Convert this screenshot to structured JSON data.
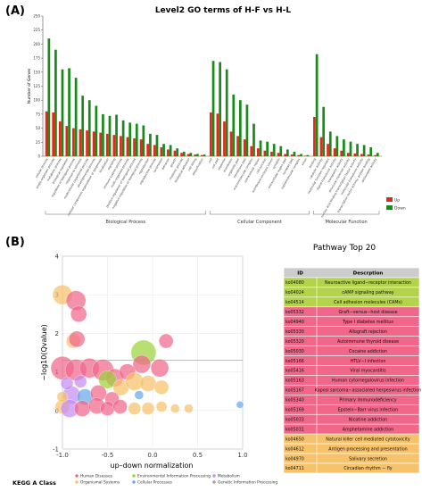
{
  "colors": {
    "up": "#e8261c",
    "down": "#1a8a1a",
    "table_header": "#cccccc",
    "group_green": "#b3d44a",
    "group_pink": "#f0678a",
    "group_orange": "#f6c26a"
  },
  "panels": {
    "a_label": "(A)",
    "b_label": "(B)"
  },
  "chart_data": [
    {
      "type": "bar",
      "title": "Level2 GO terms of H-F vs H-L",
      "ylabel": "Number of Genes",
      "xlabel": "",
      "ylim": [
        0,
        250
      ],
      "yticks": [
        0,
        25,
        50,
        75,
        100,
        125,
        150,
        175,
        200,
        225,
        250
      ],
      "legend": {
        "placement": "right",
        "entries": [
          {
            "key": "up",
            "label": "Up"
          },
          {
            "key": "down",
            "label": "Down"
          }
        ]
      },
      "groups": [
        {
          "name": "Biological Process",
          "categories": [
            "cellular process",
            "single-organism process",
            "metabolic process",
            "biological regulation",
            "regulation of biological process",
            "response to stimulus",
            "multicellular organismal process",
            "developmental process",
            "cellular component organization or biogenesis",
            "localization",
            "signaling",
            "immune system process",
            "multi-organism process",
            "positive regulation of biological process",
            "negative regulation of biological process",
            "reproduction",
            "reproductive process",
            "locomotion",
            "behavior",
            "growth",
            "rhythmic process",
            "biological adhesion",
            "cell killing",
            "detoxification"
          ],
          "up": [
            80,
            78,
            62,
            54,
            50,
            48,
            46,
            44,
            42,
            40,
            38,
            36,
            34,
            32,
            30,
            22,
            20,
            16,
            12,
            10,
            6,
            4,
            3,
            2
          ],
          "down": [
            210,
            190,
            155,
            157,
            140,
            108,
            100,
            90,
            75,
            72,
            74,
            64,
            60,
            58,
            55,
            40,
            38,
            22,
            20,
            14,
            8,
            6,
            4,
            3
          ]
        },
        {
          "name": "Cellular Component",
          "categories": [
            "cell",
            "cell part",
            "organelle",
            "membrane",
            "organelle part",
            "membrane part",
            "macromolecular complex",
            "extracellular region",
            "cell junction",
            "membrane-enclosed lumen",
            "synapse",
            "extracellular region part",
            "synapse part",
            "supramolecular complex",
            "virion"
          ],
          "up": [
            78,
            76,
            62,
            44,
            36,
            30,
            18,
            14,
            10,
            8,
            6,
            4,
            3,
            2,
            1
          ],
          "down": [
            170,
            168,
            155,
            110,
            100,
            92,
            58,
            28,
            26,
            22,
            18,
            12,
            8,
            4,
            2
          ]
        },
        {
          "name": "Molecular Function",
          "categories": [
            "binding",
            "catalytic activity",
            "molecular function regulator",
            "signal transducer activity",
            "transporter activity",
            "structural molecule activity",
            "nucleic acid binding transcription factor activity",
            "molecular transducer activity",
            "transcription factor activity, protein binding",
            "antioxidant activity"
          ],
          "up": [
            70,
            34,
            22,
            14,
            10,
            6,
            5,
            4,
            3,
            2
          ],
          "down": [
            182,
            88,
            44,
            36,
            30,
            26,
            22,
            20,
            16,
            6
          ]
        }
      ]
    },
    {
      "type": "scatter",
      "title": "",
      "xlabel": "up–down normalization",
      "ylabel": "−log10(Qvalue)",
      "xlim": [
        -1.0,
        1.0
      ],
      "ylim": [
        -1,
        4
      ],
      "xticks": [
        -1.0,
        -0.5,
        0.0,
        0.5,
        1.0
      ],
      "yticks": [
        -1,
        0,
        1,
        2,
        3,
        4
      ],
      "threshold_y": 1.3,
      "legend": {
        "title": "KEGG A Class",
        "placement": "bottom",
        "entries": [
          {
            "name": "Human Diseases",
            "color": "#f0678a"
          },
          {
            "name": "Organismal Systems",
            "color": "#f6c26a"
          },
          {
            "name": "Environmental Information Processing",
            "color": "#9cd23a"
          },
          {
            "name": "Cellular Processes",
            "color": "#6aa8e8"
          },
          {
            "name": "Metabolism",
            "color": "#c58cf2"
          },
          {
            "name": "Genetic Information Processing",
            "color": "#a0a0a0"
          }
        ]
      },
      "points": [
        {
          "x": -1.0,
          "y": 3.0,
          "r": 11,
          "cls": 1
        },
        {
          "x": -0.85,
          "y": 2.85,
          "r": 11,
          "cls": 0
        },
        {
          "x": -0.82,
          "y": 2.5,
          "r": 9,
          "cls": 0
        },
        {
          "x": -0.88,
          "y": 1.8,
          "r": 8,
          "cls": 1
        },
        {
          "x": -0.84,
          "y": 1.85,
          "r": 9,
          "cls": 0
        },
        {
          "x": -0.1,
          "y": 1.5,
          "r": 14,
          "cls": 2
        },
        {
          "x": 0.15,
          "y": 1.8,
          "r": 8,
          "cls": 0
        },
        {
          "x": -1.0,
          "y": 1.1,
          "r": 13,
          "cls": 0
        },
        {
          "x": -0.85,
          "y": 1.05,
          "r": 12,
          "cls": 0
        },
        {
          "x": -0.7,
          "y": 1.1,
          "r": 11,
          "cls": 0
        },
        {
          "x": -0.55,
          "y": 1.05,
          "r": 12,
          "cls": 0
        },
        {
          "x": -0.42,
          "y": 0.85,
          "r": 10,
          "cls": 0
        },
        {
          "x": -0.28,
          "y": 1.0,
          "r": 9,
          "cls": 0
        },
        {
          "x": -0.12,
          "y": 1.2,
          "r": 10,
          "cls": 0
        },
        {
          "x": 0.08,
          "y": 1.1,
          "r": 10,
          "cls": 0
        },
        {
          "x": -0.5,
          "y": 0.8,
          "r": 10,
          "cls": 2
        },
        {
          "x": -0.35,
          "y": 0.6,
          "r": 9,
          "cls": 1
        },
        {
          "x": -0.2,
          "y": 0.75,
          "r": 10,
          "cls": 1
        },
        {
          "x": -0.05,
          "y": 0.7,
          "r": 9,
          "cls": 1
        },
        {
          "x": 0.1,
          "y": 0.6,
          "r": 8,
          "cls": 1
        },
        {
          "x": -0.9,
          "y": 0.4,
          "r": 10,
          "cls": 4
        },
        {
          "x": -0.75,
          "y": 0.35,
          "r": 9,
          "cls": 3
        },
        {
          "x": -0.6,
          "y": 0.45,
          "r": 9,
          "cls": 0
        },
        {
          "x": -0.45,
          "y": 0.3,
          "r": 8,
          "cls": 0
        },
        {
          "x": -1.0,
          "y": 0.1,
          "r": 8,
          "cls": 1
        },
        {
          "x": -0.92,
          "y": 0.05,
          "r": 10,
          "cls": 4
        },
        {
          "x": -0.78,
          "y": 0.05,
          "r": 9,
          "cls": 0
        },
        {
          "x": -0.62,
          "y": 0.12,
          "r": 9,
          "cls": 0
        },
        {
          "x": -0.5,
          "y": 0.05,
          "r": 8,
          "cls": 0
        },
        {
          "x": -0.36,
          "y": 0.1,
          "r": 8,
          "cls": 0
        },
        {
          "x": -0.2,
          "y": 0.05,
          "r": 7,
          "cls": 1
        },
        {
          "x": -0.05,
          "y": 0.05,
          "r": 7,
          "cls": 1
        },
        {
          "x": 0.1,
          "y": 0.1,
          "r": 6,
          "cls": 1
        },
        {
          "x": 0.25,
          "y": 0.05,
          "r": 5,
          "cls": 1
        },
        {
          "x": 0.4,
          "y": 0.05,
          "r": 5,
          "cls": 1
        },
        {
          "x": -0.95,
          "y": 0.7,
          "r": 7,
          "cls": 4
        },
        {
          "x": -0.8,
          "y": 0.75,
          "r": 7,
          "cls": 4
        },
        {
          "x": -1.0,
          "y": 0.35,
          "r": 6,
          "cls": 1
        },
        {
          "x": -0.15,
          "y": 0.4,
          "r": 5,
          "cls": 3
        },
        {
          "x": 0.97,
          "y": 0.15,
          "r": 4,
          "cls": 3
        }
      ]
    },
    {
      "type": "table",
      "title": "Pathway Top 20",
      "columns": [
        "ID",
        "Descrption"
      ],
      "rows": [
        {
          "id": "ko04080",
          "desc": "Neuroactive ligand−receptor interaction",
          "group": "green"
        },
        {
          "id": "ko04024",
          "desc": "cAMP signaling pathway",
          "group": "green"
        },
        {
          "id": "ko04514",
          "desc": "Cell adhesion molecules (CAMs)",
          "group": "green"
        },
        {
          "id": "ko05332",
          "desc": "Graft−versus−host disease",
          "group": "pink"
        },
        {
          "id": "ko04940",
          "desc": "Type I diabetes mellitus",
          "group": "pink"
        },
        {
          "id": "ko05330",
          "desc": "Allograft rejection",
          "group": "pink"
        },
        {
          "id": "ko05320",
          "desc": "Autoimmune thyroid disease",
          "group": "pink"
        },
        {
          "id": "ko05030",
          "desc": "Cocaine addiction",
          "group": "pink"
        },
        {
          "id": "ko05166",
          "desc": "HTLV−I infection",
          "group": "pink"
        },
        {
          "id": "ko05416",
          "desc": "Viral myocarditis",
          "group": "pink"
        },
        {
          "id": "ko05163",
          "desc": "Human cytomegalovirus infection",
          "group": "pink"
        },
        {
          "id": "ko05167",
          "desc": "Kaposi sarcoma−associated herpesvirus infection",
          "group": "pink"
        },
        {
          "id": "ko05340",
          "desc": "Primary immunodeficiency",
          "group": "pink"
        },
        {
          "id": "ko05169",
          "desc": "Epstein−Barr virus infection",
          "group": "pink"
        },
        {
          "id": "ko05033",
          "desc": "Nicotine addiction",
          "group": "pink"
        },
        {
          "id": "ko05031",
          "desc": "Amphetamine addiction",
          "group": "pink"
        },
        {
          "id": "ko04650",
          "desc": "Natural killer cell mediated cytotoxicity",
          "group": "orange"
        },
        {
          "id": "ko04612",
          "desc": "Antigen processing and presentation",
          "group": "orange"
        },
        {
          "id": "ko04970",
          "desc": "Salivary secretion",
          "group": "orange"
        },
        {
          "id": "ko04711",
          "desc": "Circadian rhythm − fly",
          "group": "orange"
        }
      ]
    }
  ]
}
